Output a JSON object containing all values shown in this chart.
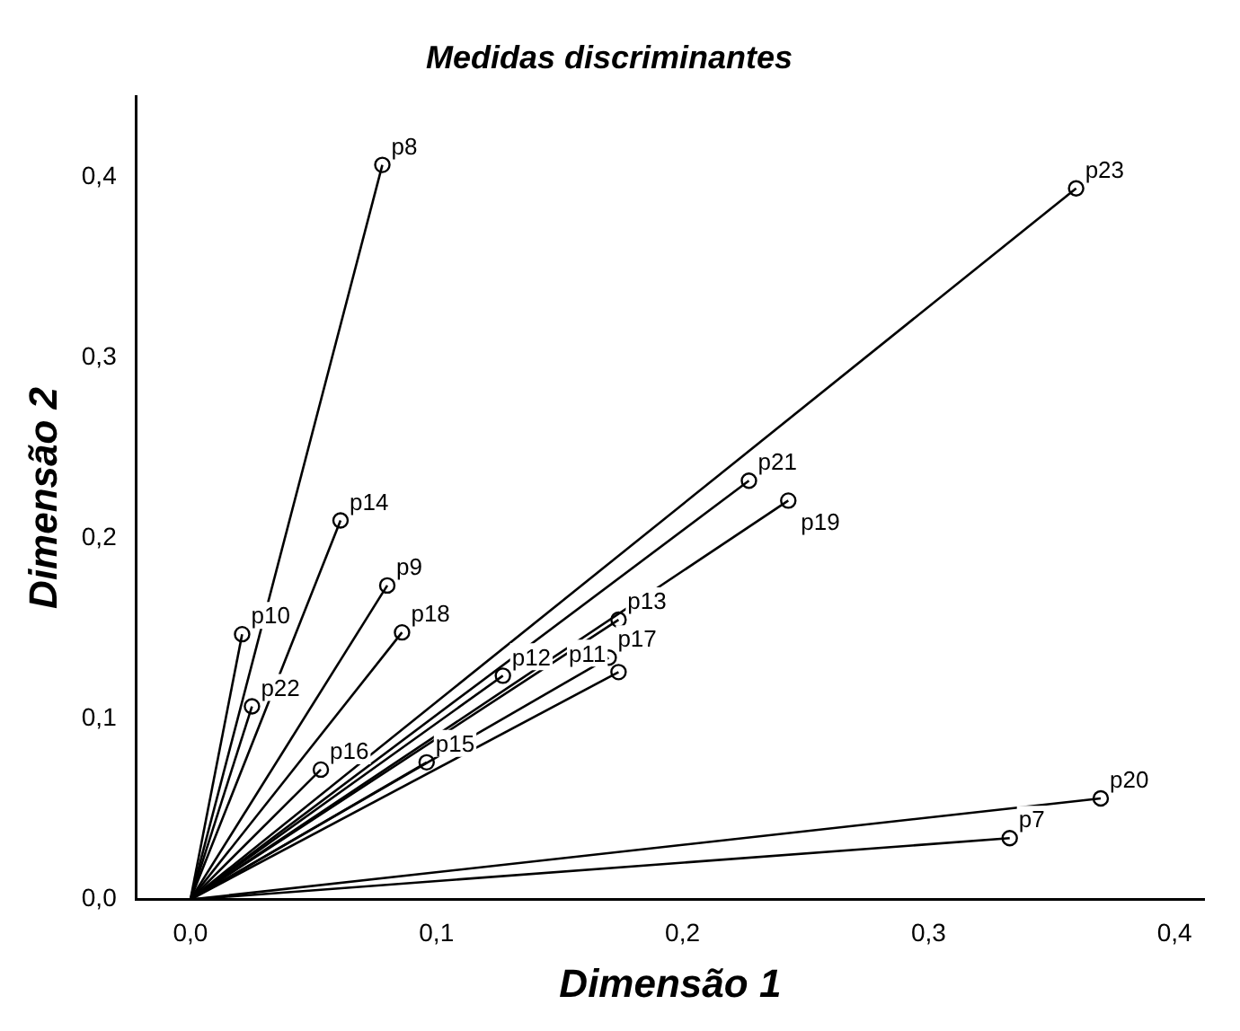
{
  "chart_data": {
    "type": "line",
    "title": "Medidas discriminantes",
    "xlabel": "Dimensão 1",
    "ylabel": "Dimensão 2",
    "xlim": [
      -0.022,
      0.412
    ],
    "ylim": [
      0,
      0.445
    ],
    "xticks": [
      {
        "value": 0,
        "label": "0,0"
      },
      {
        "value": 0.1,
        "label": "0,1"
      },
      {
        "value": 0.2,
        "label": "0,2"
      },
      {
        "value": 0.3,
        "label": "0,3"
      },
      {
        "value": 0.4,
        "label": "0,4"
      }
    ],
    "yticks": [
      {
        "value": 0,
        "label": "0,0"
      },
      {
        "value": 0.1,
        "label": "0,1"
      },
      {
        "value": 0.2,
        "label": "0,2"
      },
      {
        "value": 0.3,
        "label": "0,3"
      },
      {
        "value": 0.4,
        "label": "0,4"
      }
    ],
    "grid": false,
    "legend": false,
    "marker": "circle",
    "line_style": "solid",
    "series": [
      {
        "name": "p8",
        "color": "#000000",
        "x": [
          0,
          0.078
        ],
        "values": [
          0,
          0.407
        ]
      },
      {
        "name": "p23",
        "color": "#000000",
        "x": [
          0,
          0.36
        ],
        "values": [
          0,
          0.394
        ]
      },
      {
        "name": "p21",
        "color": "#000000",
        "x": [
          0,
          0.227
        ],
        "values": [
          0,
          0.232
        ]
      },
      {
        "name": "p19",
        "color": "#000000",
        "x": [
          0,
          0.243
        ],
        "values": [
          0,
          0.221
        ]
      },
      {
        "name": "p14",
        "color": "#000000",
        "x": [
          0,
          0.061
        ],
        "values": [
          0,
          0.21
        ]
      },
      {
        "name": "p9",
        "color": "#000000",
        "x": [
          0,
          0.08
        ],
        "values": [
          0,
          0.174
        ]
      },
      {
        "name": "p18",
        "color": "#000000",
        "x": [
          0,
          0.086
        ],
        "values": [
          0,
          0.148
        ]
      },
      {
        "name": "p10",
        "color": "#000000",
        "x": [
          0,
          0.021
        ],
        "values": [
          0,
          0.147
        ]
      },
      {
        "name": "p13",
        "color": "#000000",
        "x": [
          0,
          0.174
        ],
        "values": [
          0,
          0.155
        ]
      },
      {
        "name": "p12",
        "color": "#000000",
        "x": [
          0,
          0.127
        ],
        "values": [
          0,
          0.124
        ]
      },
      {
        "name": "p17",
        "color": "#000000",
        "x": [
          0,
          0.17
        ],
        "values": [
          0,
          0.134
        ]
      },
      {
        "name": "p11",
        "color": "#000000",
        "x": [
          0,
          0.174
        ],
        "values": [
          0,
          0.126
        ]
      },
      {
        "name": "p22",
        "color": "#000000",
        "x": [
          0,
          0.025
        ],
        "values": [
          0,
          0.107
        ]
      },
      {
        "name": "p16",
        "color": "#000000",
        "x": [
          0,
          0.053
        ],
        "values": [
          0,
          0.072
        ]
      },
      {
        "name": "p15",
        "color": "#000000",
        "x": [
          0,
          0.096
        ],
        "values": [
          0,
          0.076
        ]
      },
      {
        "name": "p20",
        "color": "#000000",
        "x": [
          0,
          0.37
        ],
        "values": [
          0,
          0.056
        ]
      },
      {
        "name": "p7",
        "color": "#000000",
        "x": [
          0,
          0.333
        ],
        "values": [
          0,
          0.034
        ]
      }
    ]
  }
}
